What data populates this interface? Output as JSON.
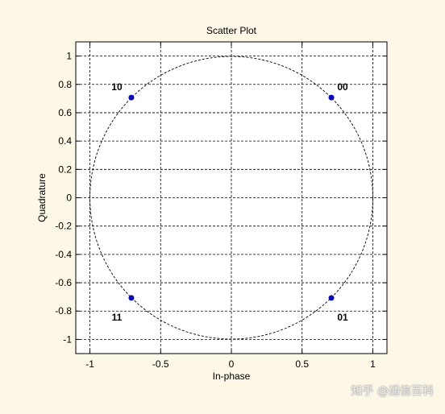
{
  "chart_data": {
    "type": "scatter",
    "title": "Scatter Plot",
    "xlabel": "In-phase",
    "ylabel": "Quadrature",
    "xlim": [
      -1.1,
      1.1
    ],
    "ylim": [
      -1.1,
      1.1
    ],
    "grid": true,
    "xticks": [
      -1,
      -0.5,
      0,
      0.5,
      1
    ],
    "xtick_labels": [
      "-1",
      "-0.5",
      "0",
      "0.5",
      "1"
    ],
    "yticks": [
      -1,
      -0.8,
      -0.6,
      -0.4,
      -0.2,
      0,
      0.2,
      0.4,
      0.6,
      0.8,
      1
    ],
    "ytick_labels": [
      "-1",
      "-0.8",
      "-0.6",
      "-0.4",
      "-0.2",
      "0",
      "0.2",
      "0.4",
      "0.6",
      "0.8",
      "1"
    ],
    "reference_circle": {
      "radius": 1,
      "style": "dashed"
    },
    "points": [
      {
        "x": 0.707,
        "y": 0.707,
        "label": "00"
      },
      {
        "x": 0.707,
        "y": -0.707,
        "label": "01"
      },
      {
        "x": -0.707,
        "y": 0.707,
        "label": "10"
      },
      {
        "x": -0.707,
        "y": -0.707,
        "label": "11"
      }
    ],
    "colors": {
      "point": "#0a0ab4",
      "grid": "#000000",
      "frame": "#000000",
      "plot_bg": "#ffffff"
    }
  },
  "watermark": {
    "text": "知乎 @通信百科"
  }
}
